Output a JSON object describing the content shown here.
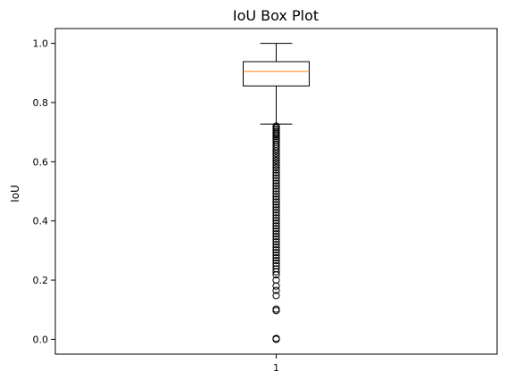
{
  "chart_data": {
    "type": "box",
    "title": "IoU Box Plot",
    "xlabel": "",
    "ylabel": "IoU",
    "categories": [
      "1"
    ],
    "ylim": [
      -0.05,
      1.05
    ],
    "yticks": [
      0.0,
      0.2,
      0.4,
      0.6,
      0.8,
      1.0
    ],
    "ytick_labels": [
      "0.0",
      "0.2",
      "0.4",
      "0.6",
      "0.8",
      "1.0"
    ],
    "box": {
      "whisker_low": 0.727,
      "q1": 0.856,
      "median": 0.905,
      "q3": 0.938,
      "whisker_high": 1.0
    },
    "outliers": [
      0.72,
      0.715,
      0.71,
      0.705,
      0.7,
      0.695,
      0.69,
      0.684,
      0.678,
      0.672,
      0.665,
      0.658,
      0.651,
      0.644,
      0.636,
      0.628,
      0.62,
      0.612,
      0.604,
      0.596,
      0.588,
      0.58,
      0.572,
      0.563,
      0.554,
      0.545,
      0.536,
      0.527,
      0.518,
      0.509,
      0.5,
      0.491,
      0.482,
      0.473,
      0.464,
      0.455,
      0.446,
      0.437,
      0.428,
      0.419,
      0.41,
      0.401,
      0.392,
      0.383,
      0.374,
      0.365,
      0.356,
      0.347,
      0.338,
      0.329,
      0.32,
      0.311,
      0.302,
      0.293,
      0.284,
      0.275,
      0.266,
      0.257,
      0.248,
      0.238,
      0.228,
      0.218,
      0.2,
      0.18,
      0.165,
      0.148,
      0.102,
      0.097,
      0.003,
      0.001,
      0.0
    ],
    "colors": {
      "box": "#000000",
      "median": "#ff7f0e",
      "outlier": "#000000",
      "axes": "#000000"
    }
  }
}
